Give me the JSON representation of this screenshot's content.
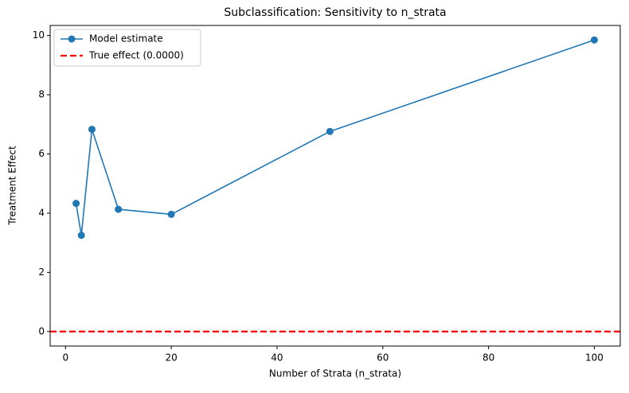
{
  "chart_data": {
    "type": "line",
    "title": "Subclassification: Sensitivity to n_strata",
    "x_label": "Number of Strata (n_strata)",
    "y_label": "Treatment Effect",
    "x": [
      2,
      3,
      5,
      10,
      20,
      50,
      100
    ],
    "series": [
      {
        "name": "Model estimate",
        "color": "#1f77b4",
        "values": [
          4.33,
          3.25,
          6.83,
          4.13,
          3.96,
          6.76,
          9.85
        ]
      }
    ],
    "reference_line": {
      "name": "True effect (0.0000)",
      "value": 0,
      "color": "#ff0000"
    },
    "xlim": [
      -2.9,
      104.9
    ],
    "xticks": [
      0,
      20,
      40,
      60,
      80,
      100
    ],
    "ylim": [
      -0.49,
      10.34
    ],
    "yticks": [
      0,
      2,
      4,
      6,
      8,
      10
    ],
    "legend": "upper left",
    "grid": false
  }
}
